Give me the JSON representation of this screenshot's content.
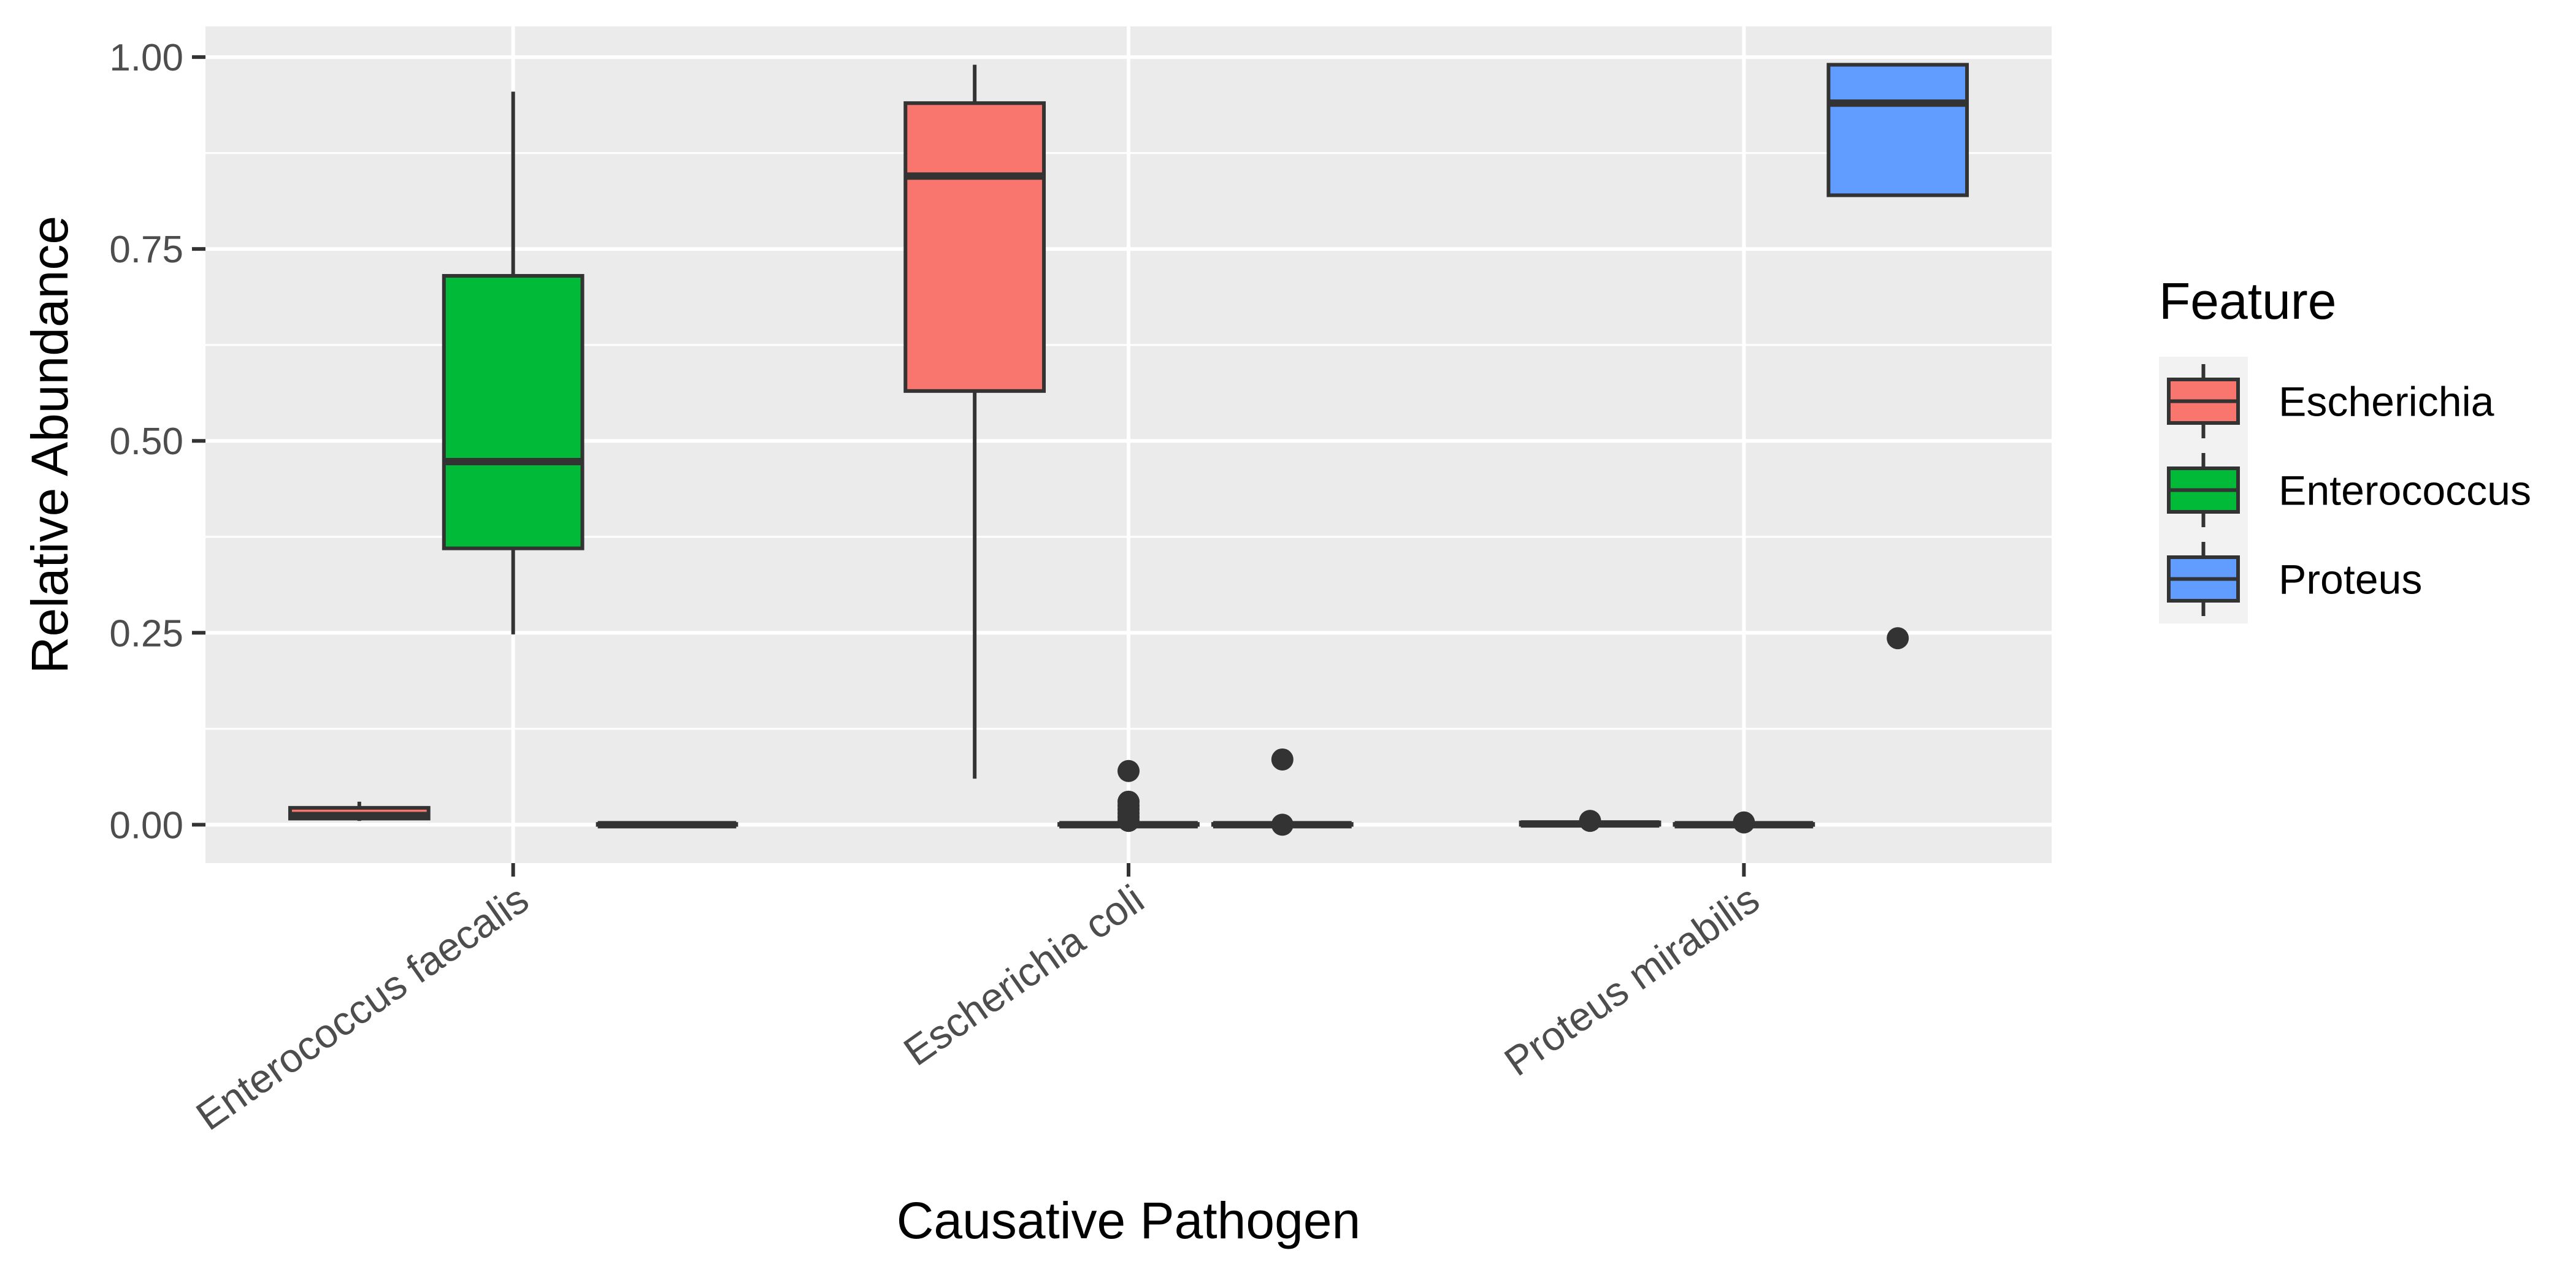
{
  "chart_data": {
    "type": "boxplot",
    "xlabel": "Causative Pathogen",
    "ylabel": "Relative Abundance",
    "ylim": [
      -0.05,
      1.04
    ],
    "y_ticks": [
      0.0,
      0.25,
      0.5,
      0.75,
      1.0
    ],
    "y_tick_labels": [
      "0.00",
      "0.25",
      "0.50",
      "0.75",
      "1.00"
    ],
    "grid": true,
    "legend_position": "right",
    "categories": [
      "Enterococcus faecalis",
      "Escherichia coli",
      "Proteus mirabilis"
    ],
    "legend": {
      "title": "Feature",
      "entries": [
        "Escherichia",
        "Enterococcus",
        "Proteus"
      ]
    },
    "series": [
      {
        "name": "Escherichia",
        "color": "#F8766D",
        "boxes": [
          {
            "min": 0.005,
            "q1": 0.008,
            "median": 0.012,
            "q3": 0.022,
            "max": 0.03,
            "outliers": []
          },
          {
            "min": 0.06,
            "q1": 0.565,
            "median": 0.845,
            "q3": 0.94,
            "max": 0.99,
            "outliers": []
          },
          {
            "min": 0.0,
            "q1": 0.0,
            "median": 0.001,
            "q3": 0.003,
            "max": 0.006,
            "outliers": [
              0.005
            ]
          }
        ]
      },
      {
        "name": "Enterococcus",
        "color": "#00BA38",
        "boxes": [
          {
            "min": 0.248,
            "q1": 0.36,
            "median": 0.473,
            "q3": 0.715,
            "max": 0.955,
            "outliers": []
          },
          {
            "min": 0.0,
            "q1": 0.0,
            "median": 0.0,
            "q3": 0.001,
            "max": 0.002,
            "outliers": [
              0.005,
              0.01,
              0.015,
              0.02,
              0.025,
              0.03,
              0.07
            ]
          },
          {
            "min": 0.0,
            "q1": 0.0,
            "median": 0.0,
            "q3": 0.001,
            "max": 0.003,
            "outliers": [
              0.003
            ]
          }
        ]
      },
      {
        "name": "Proteus",
        "color": "#619CFF",
        "boxes": [
          {
            "min": 0.0,
            "q1": 0.0,
            "median": 0.0,
            "q3": 0.001,
            "max": 0.002,
            "outliers": []
          },
          {
            "min": 0.0,
            "q1": 0.0,
            "median": 0.0,
            "q3": 0.001,
            "max": 0.002,
            "outliers": [
              0.0,
              0.085
            ]
          },
          {
            "min": 0.82,
            "q1": 0.82,
            "median": 0.94,
            "q3": 0.99,
            "max": 0.99,
            "outliers": [
              0.243
            ]
          }
        ]
      }
    ]
  }
}
